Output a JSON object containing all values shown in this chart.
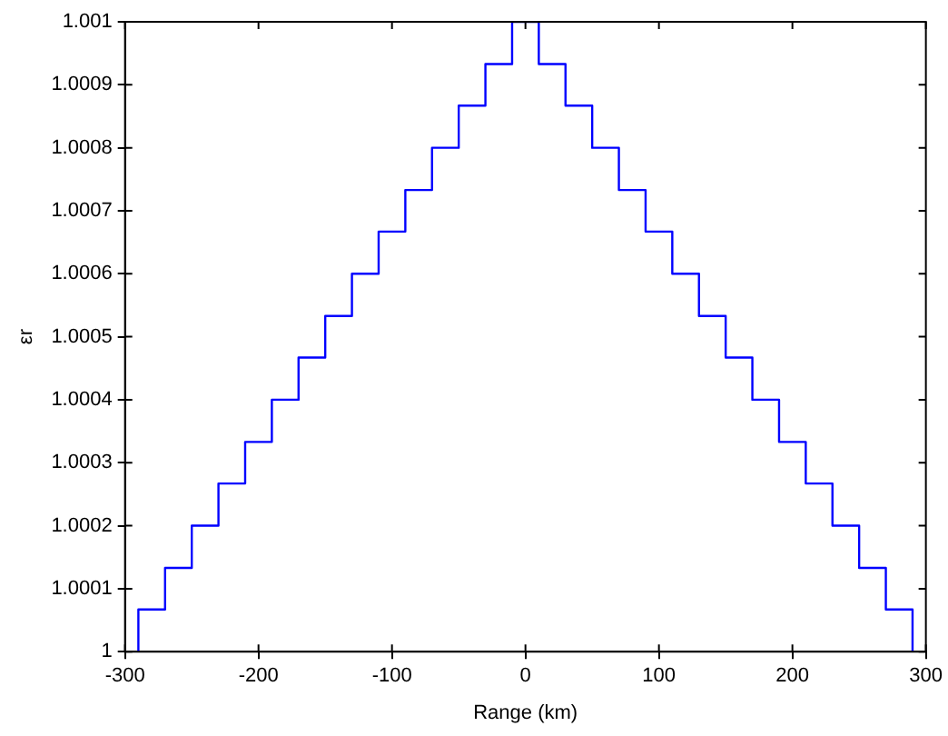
{
  "chart_data": {
    "type": "step",
    "xlabel": "Range (km)",
    "ylabel": "εr",
    "x": [
      -290,
      -290,
      -270,
      -250,
      -230,
      -210,
      -190,
      -170,
      -150,
      -130,
      -110,
      -90,
      -70,
      -50,
      -30,
      -10,
      10,
      30,
      50,
      70,
      90,
      110,
      130,
      150,
      170,
      190,
      210,
      230,
      250,
      270,
      290
    ],
    "series": [
      {
        "color": "#0000ff",
        "values": [
          1,
          1.000067,
          1.000133,
          1.0002,
          1.000267,
          1.000333,
          1.0004,
          1.000467,
          1.000533,
          1.0006,
          1.000667,
          1.000733,
          1.0008,
          1.000867,
          1.000933,
          1.001,
          1.000933,
          1.000867,
          1.0008,
          1.000733,
          1.000667,
          1.0006,
          1.000533,
          1.000467,
          1.0004,
          1.000333,
          1.000267,
          1.0002,
          1.000133,
          1.000067,
          1
        ]
      }
    ],
    "xlim": [
      -300,
      300
    ],
    "xticks": [
      -300,
      -200,
      -100,
      0,
      100,
      200,
      300
    ],
    "ylim": [
      1,
      1.001
    ],
    "yticks": [
      1,
      1.0001,
      1.0002,
      1.0003,
      1.0004,
      1.0005,
      1.0006,
      1.0007,
      1.0008,
      1.0009,
      1.001
    ],
    "grid": false,
    "legend": false
  }
}
